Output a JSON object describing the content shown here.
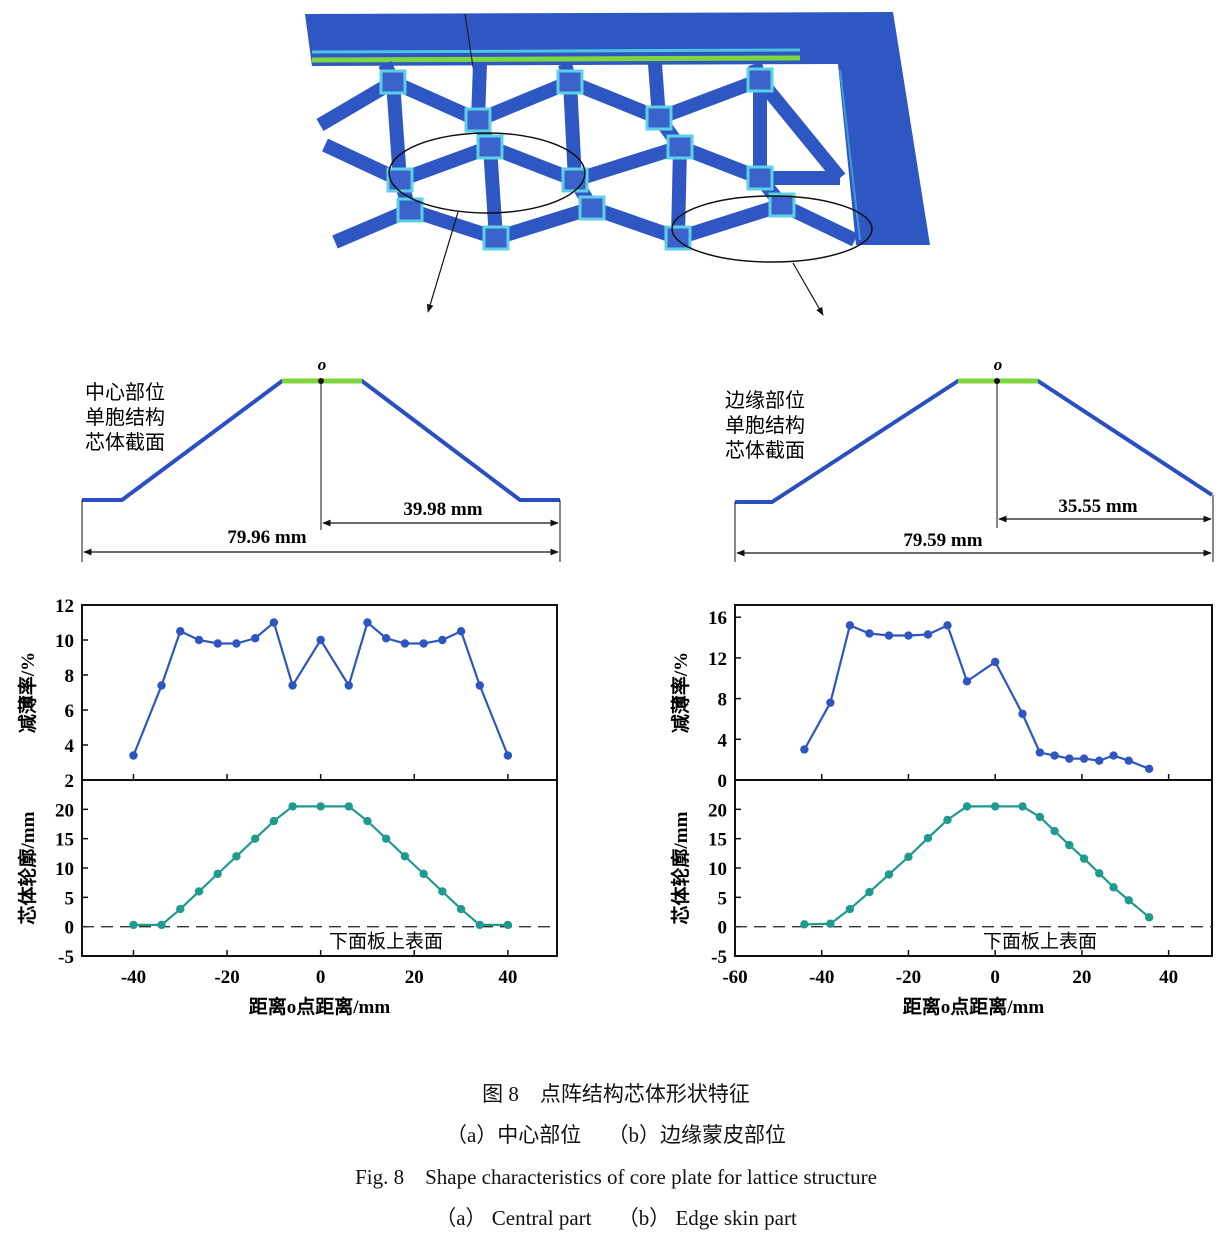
{
  "figure": {
    "panel_a": {
      "section_label": [
        "中心部位",
        "单胞结构",
        "芯体截面"
      ],
      "origin_label": "o",
      "half_width": "39.98 mm",
      "full_width": "79.96 mm"
    },
    "panel_b": {
      "section_label": [
        "边缘部位",
        "单胞结构",
        "芯体截面"
      ],
      "origin_label": "o",
      "half_width": "35.55 mm",
      "full_width": "79.59 mm"
    }
  },
  "chart_data": [
    {
      "type": "line",
      "panel": "a-top",
      "ylabel": "减薄率/%",
      "xlim": [
        -51,
        50.5
      ],
      "ylim": [
        2,
        12
      ],
      "yticks": [
        "2",
        "4",
        "6",
        "8",
        "10",
        "12"
      ],
      "color": "#2f55c0",
      "x": [
        -40,
        -34,
        -30,
        -26,
        -22,
        -18,
        -14,
        -10,
        -6,
        0,
        6,
        10,
        14,
        18,
        22,
        26,
        30,
        34,
        40
      ],
      "y": [
        3.4,
        7.4,
        10.5,
        10.0,
        9.8,
        9.8,
        10.1,
        11.0,
        7.4,
        10.0,
        7.4,
        11.0,
        10.1,
        9.8,
        9.8,
        10.0,
        10.5,
        7.4,
        3.4
      ]
    },
    {
      "type": "line",
      "panel": "a-bottom",
      "ylabel": "芯体轮廓/mm",
      "xlabel": "距离o点距离/mm",
      "xlim": [
        -51,
        50.5
      ],
      "ylim": [
        -5,
        25
      ],
      "xticks": [
        "-40",
        "-20",
        "0",
        "20",
        "40"
      ],
      "yticks": [
        "-5",
        "0",
        "5",
        "10",
        "15",
        "20"
      ],
      "color": "#1f9a8e",
      "reference_line": {
        "y": 0,
        "label": "下面板上表面"
      },
      "x": [
        -40,
        -34,
        -30,
        -26,
        -22,
        -18,
        -14,
        -10,
        -6,
        0,
        6,
        10,
        14,
        18,
        22,
        26,
        30,
        34,
        40
      ],
      "y": [
        0.3,
        0.3,
        3,
        6,
        9,
        12,
        15,
        18,
        20.5,
        20.5,
        20.5,
        18,
        15,
        12,
        9,
        6,
        3,
        0.3,
        0.3
      ]
    },
    {
      "type": "line",
      "panel": "b-top",
      "ylabel": "减薄率/%",
      "xlim": [
        -60,
        50
      ],
      "ylim": [
        0,
        17.2
      ],
      "yticks": [
        "0",
        "4",
        "8",
        "12",
        "16"
      ],
      "color": "#2f55c0",
      "x": [
        -44,
        -38,
        -33.5,
        -29,
        -24.5,
        -20,
        -15.5,
        -11,
        -6.5,
        0,
        6.3,
        10.3,
        13.7,
        17.1,
        20.5,
        24,
        27.3,
        30.8,
        35.5
      ],
      "y": [
        3.0,
        7.6,
        15.2,
        14.4,
        14.2,
        14.2,
        14.3,
        15.2,
        9.7,
        11.6,
        6.5,
        2.7,
        2.4,
        2.1,
        2.1,
        1.9,
        2.4,
        1.9,
        1.1
      ]
    },
    {
      "type": "line",
      "panel": "b-bottom",
      "ylabel": "芯体轮廓/mm",
      "xlabel": "距离o点距离/mm",
      "xlim": [
        -60,
        50
      ],
      "ylim": [
        -5,
        25
      ],
      "xticks": [
        "-60",
        "-40",
        "-20",
        "0",
        "20",
        "40"
      ],
      "yticks": [
        "-5",
        "0",
        "5",
        "10",
        "15",
        "20"
      ],
      "color": "#1f9a8e",
      "reference_line": {
        "y": 0,
        "label": "下面板上表面"
      },
      "x": [
        -44,
        -38,
        -33.5,
        -29,
        -24.5,
        -20,
        -15.5,
        -11,
        -6.5,
        0,
        6.3,
        10.3,
        13.7,
        17.1,
        20.5,
        24,
        27.3,
        30.8,
        35.5
      ],
      "y": [
        0.4,
        0.5,
        3,
        5.9,
        8.9,
        11.9,
        15.1,
        18.2,
        20.5,
        20.5,
        20.5,
        18.7,
        16.3,
        13.9,
        11.6,
        9.1,
        6.7,
        4.5,
        1.6
      ]
    }
  ],
  "caption": {
    "cn_title": "图 8　点阵结构芯体形状特征",
    "cn_sub": "（a）中心部位　 （b）边缘蒙皮部位",
    "en_title": "Fig. 8　Shape characteristics of core plate for lattice structure",
    "en_sub": "（a） Central part　 （b） Edge skin part"
  }
}
